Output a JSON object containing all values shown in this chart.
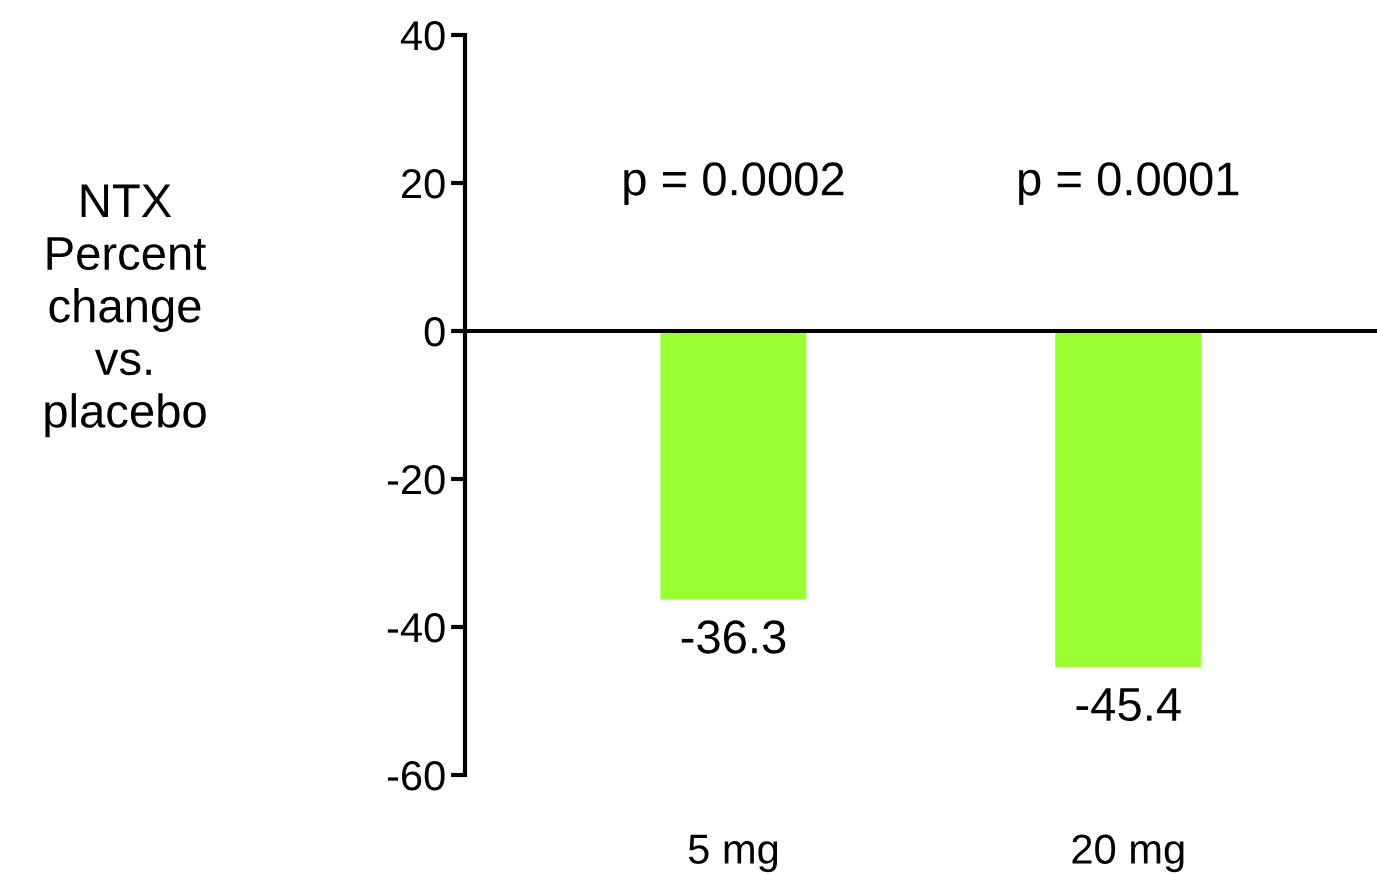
{
  "chart_data": {
    "type": "bar",
    "ylabel": "NTX\nPercent\nchange\nvs.\nplacebo",
    "categories": [
      "5 mg",
      "20 mg"
    ],
    "series": [
      {
        "color": "#99ff33",
        "values": [
          -36.3,
          -45.4
        ]
      }
    ],
    "data_labels": true,
    "ylim": [
      -60,
      40
    ],
    "yticks": [
      -60,
      -40,
      -20,
      0,
      20,
      40
    ],
    "annotations": [
      "p = 0.0002",
      "p = 0.0001"
    ]
  }
}
